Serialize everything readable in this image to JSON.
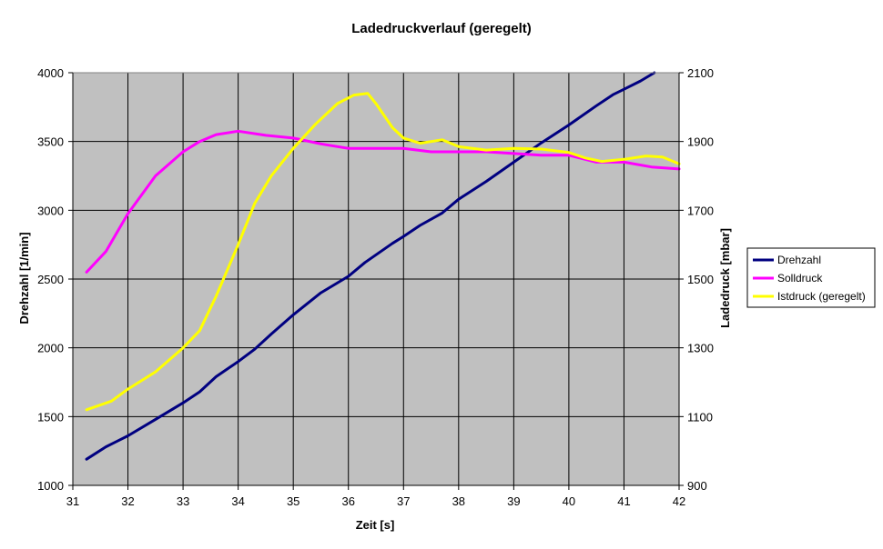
{
  "chart_data": {
    "type": "line",
    "title": "Ladedruckverlauf (geregelt)",
    "xlabel": "Zeit [s]",
    "ylabel": "Drehzahl [1/min]",
    "y2label": "Ladedruck [mbar]",
    "xlim": [
      31,
      42
    ],
    "ylim": [
      1000,
      4000
    ],
    "y2lim": [
      900,
      2100
    ],
    "x_ticks": [
      31,
      32,
      33,
      34,
      35,
      36,
      37,
      38,
      39,
      40,
      41,
      42
    ],
    "y_ticks": [
      1000,
      1500,
      2000,
      2500,
      3000,
      3500,
      4000
    ],
    "y2_ticks": [
      900,
      1100,
      1300,
      1500,
      1700,
      1900,
      2100
    ],
    "plot_background": "#c0c0c0",
    "grid": true,
    "legend_position": "right",
    "series": [
      {
        "name": "Drehzahl",
        "axis": "left",
        "color": "#000080",
        "points": [
          [
            31.25,
            1190
          ],
          [
            31.6,
            1280
          ],
          [
            32.0,
            1360
          ],
          [
            32.5,
            1480
          ],
          [
            33.0,
            1600
          ],
          [
            33.3,
            1680
          ],
          [
            33.6,
            1790
          ],
          [
            34.0,
            1900
          ],
          [
            34.3,
            1990
          ],
          [
            34.6,
            2100
          ],
          [
            35.0,
            2240
          ],
          [
            35.5,
            2400
          ],
          [
            36.0,
            2520
          ],
          [
            36.3,
            2620
          ],
          [
            36.8,
            2760
          ],
          [
            37.0,
            2810
          ],
          [
            37.3,
            2890
          ],
          [
            37.7,
            2980
          ],
          [
            38.0,
            3080
          ],
          [
            38.5,
            3210
          ],
          [
            39.0,
            3350
          ],
          [
            39.5,
            3490
          ],
          [
            40.0,
            3620
          ],
          [
            40.5,
            3760
          ],
          [
            40.8,
            3840
          ],
          [
            41.0,
            3880
          ],
          [
            41.3,
            3940
          ],
          [
            41.55,
            4010
          ]
        ]
      },
      {
        "name": "Solldruck",
        "axis": "right",
        "color": "#ff00ff",
        "points": [
          [
            31.25,
            1520
          ],
          [
            31.6,
            1580
          ],
          [
            32.0,
            1690
          ],
          [
            32.5,
            1800
          ],
          [
            33.0,
            1870
          ],
          [
            33.3,
            1900
          ],
          [
            33.6,
            1920
          ],
          [
            34.0,
            1930
          ],
          [
            34.5,
            1918
          ],
          [
            35.0,
            1910
          ],
          [
            35.5,
            1893
          ],
          [
            36.0,
            1880
          ],
          [
            36.5,
            1880
          ],
          [
            37.0,
            1880
          ],
          [
            37.5,
            1870
          ],
          [
            38.0,
            1870
          ],
          [
            38.5,
            1870
          ],
          [
            39.0,
            1865
          ],
          [
            39.5,
            1860
          ],
          [
            40.0,
            1860
          ],
          [
            40.5,
            1840
          ],
          [
            41.0,
            1840
          ],
          [
            41.5,
            1826
          ],
          [
            42.0,
            1820
          ]
        ]
      },
      {
        "name": "Istdruck (geregelt)",
        "axis": "right",
        "color": "#ffff00",
        "points": [
          [
            31.25,
            1120
          ],
          [
            31.7,
            1145
          ],
          [
            32.0,
            1180
          ],
          [
            32.5,
            1230
          ],
          [
            33.0,
            1300
          ],
          [
            33.3,
            1350
          ],
          [
            33.6,
            1450
          ],
          [
            34.0,
            1600
          ],
          [
            34.3,
            1720
          ],
          [
            34.6,
            1800
          ],
          [
            35.0,
            1880
          ],
          [
            35.4,
            1950
          ],
          [
            35.8,
            2010
          ],
          [
            36.1,
            2035
          ],
          [
            36.35,
            2040
          ],
          [
            36.5,
            2010
          ],
          [
            36.8,
            1940
          ],
          [
            37.0,
            1910
          ],
          [
            37.3,
            1895
          ],
          [
            37.7,
            1905
          ],
          [
            38.0,
            1885
          ],
          [
            38.5,
            1875
          ],
          [
            39.0,
            1880
          ],
          [
            39.5,
            1878
          ],
          [
            40.0,
            1868
          ],
          [
            40.3,
            1852
          ],
          [
            40.6,
            1842
          ],
          [
            41.0,
            1848
          ],
          [
            41.4,
            1858
          ],
          [
            41.7,
            1855
          ],
          [
            42.0,
            1835
          ]
        ]
      }
    ]
  }
}
